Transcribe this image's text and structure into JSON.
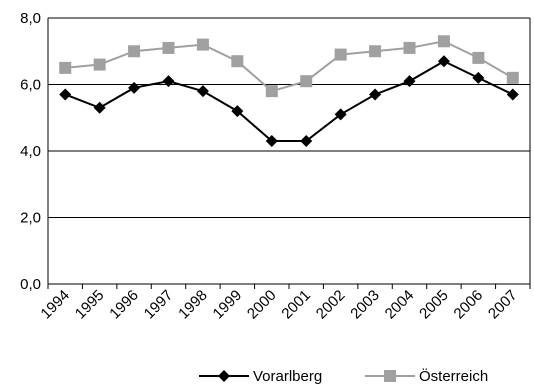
{
  "chart_data": {
    "type": "line",
    "categories": [
      "1994",
      "1995",
      "1996",
      "1997",
      "1998",
      "1999",
      "2000",
      "2001",
      "2002",
      "2003",
      "2004",
      "2005",
      "2006",
      "2007"
    ],
    "series": [
      {
        "name": "Vorarlberg",
        "color": "#000000",
        "marker": "diamond",
        "values": [
          5.7,
          5.3,
          5.9,
          6.1,
          5.8,
          5.2,
          4.3,
          4.3,
          5.1,
          5.7,
          6.1,
          6.7,
          6.2,
          5.7
        ]
      },
      {
        "name": "Österreich",
        "color": "#a0a0a0",
        "marker": "square",
        "values": [
          6.5,
          6.6,
          7.0,
          7.1,
          7.2,
          6.7,
          5.8,
          6.1,
          6.9,
          7.0,
          7.1,
          7.3,
          6.8,
          6.2
        ]
      }
    ],
    "y_ticks": [
      "0,0",
      "2,0",
      "4,0",
      "6,0",
      "8,0"
    ],
    "ylim": [
      0,
      8
    ],
    "y_step": 2,
    "grid": "horizontal",
    "legend_position": "bottom"
  }
}
